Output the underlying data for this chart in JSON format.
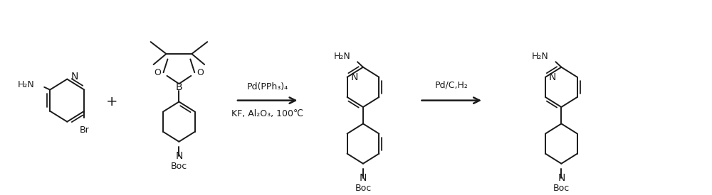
{
  "bg_color": "#ffffff",
  "line_color": "#1a1a1a",
  "figsize": [
    10.0,
    2.75
  ],
  "dpi": 100,
  "step1_reagent": "Pd(PPh₃)₄",
  "step1_conditions": "KF, Al₂O₃, 100℃",
  "step2_reagent": "Pd/C,H₂",
  "lw": 1.4
}
